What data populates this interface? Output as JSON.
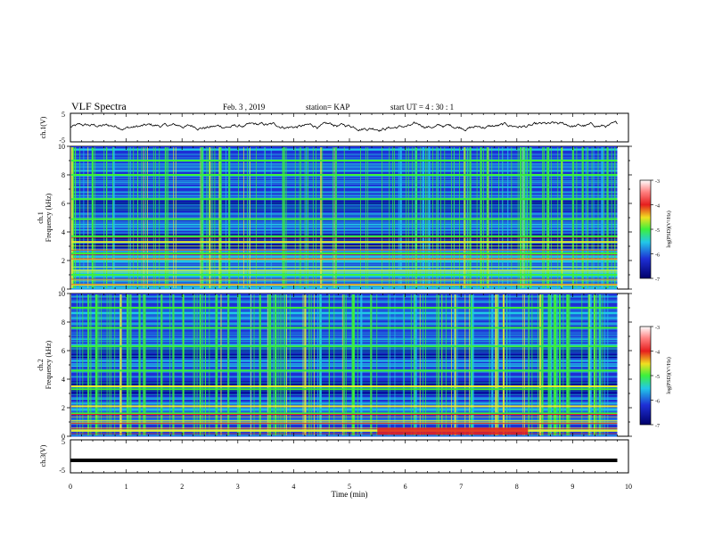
{
  "header": {
    "title": "VLF Spectra",
    "date": "Feb. 3 , 2019",
    "station": "station= KAP",
    "start": "start UT =  4 : 30 : 1"
  },
  "chart_data": [
    {
      "type": "line",
      "panel": "ch1-waveform",
      "ylabel": "ch.1(V)",
      "ylim": [
        -5,
        5
      ],
      "yticks": [
        "5",
        "-5"
      ],
      "xlim": [
        0,
        10
      ],
      "description_values": "noisy waveform oscillating roughly between -1 and 2 V"
    },
    {
      "type": "heatmap",
      "panel": "ch1-spectrogram",
      "ylabel": "ch.1 Frequency (kHz)",
      "ylim": [
        0,
        10
      ],
      "yticks": [
        "0",
        "2",
        "4",
        "6",
        "8",
        "10"
      ],
      "xlim": [
        0,
        9.8
      ],
      "bands_khz": [
        0.3,
        1.0,
        2.1,
        2.5,
        3.3,
        3.7,
        4.9,
        6.3,
        8.0,
        9.0
      ],
      "colorbar": {
        "label": "log(PSD)(V²/Hz)",
        "range": [
          -7,
          -3
        ],
        "ticks": [
          "-3",
          "-4",
          "-5",
          "-6",
          "-7"
        ]
      }
    },
    {
      "type": "heatmap",
      "panel": "ch2-spectrogram",
      "ylabel": "ch.2 Frequency (kHz)",
      "ylim": [
        0,
        10
      ],
      "yticks": [
        "0",
        "2",
        "4",
        "6",
        "8",
        "10"
      ],
      "xlim": [
        0,
        9.8
      ],
      "bands_khz": [
        0.4,
        1.6,
        2.1,
        3.3,
        3.5,
        4.6,
        6.3,
        7.6,
        9.0
      ],
      "colorbar": {
        "label": "log(PSD)(V²/Hz)",
        "range": [
          -7,
          -3
        ],
        "ticks": [
          "-3",
          "-4",
          "-5",
          "-6",
          "-7"
        ]
      }
    },
    {
      "type": "line",
      "panel": "ch3-waveform",
      "ylabel": "ch.3(V)",
      "ylim": [
        -5,
        5
      ],
      "yticks": [
        "5",
        "-5"
      ],
      "x": [
        0,
        9.8
      ],
      "y": [
        -1.2,
        -1.2
      ]
    }
  ],
  "xaxis": {
    "label": "Time  (min)",
    "ticks": [
      "0",
      "1",
      "2",
      "3",
      "4",
      "5",
      "6",
      "7",
      "8",
      "9",
      "10"
    ],
    "range": [
      0,
      10
    ]
  },
  "colors": {
    "deep": "#00008b",
    "blue": "#1e2fd6",
    "cyan": "#22c8e8",
    "green": "#3cf03c",
    "yellow": "#e8ec30",
    "red": "#e61e1e"
  }
}
